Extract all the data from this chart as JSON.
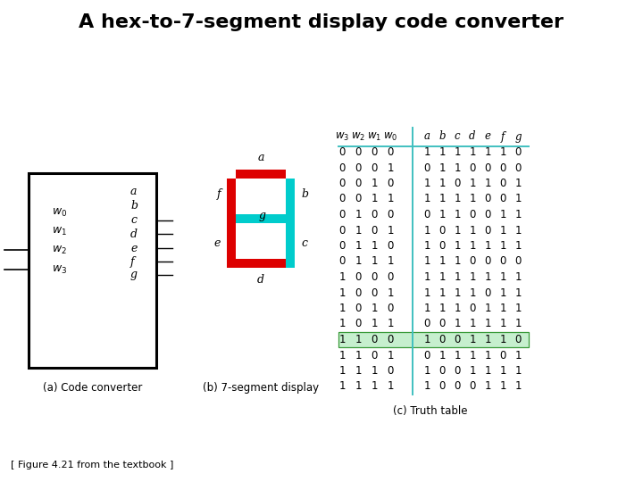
{
  "title": "A hex-to-7-segment display code converter",
  "title_fontsize": 16,
  "caption": "[ Figure 4.21 from the textbook ]",
  "sub_a": "(a) Code converter",
  "sub_b": "(b) 7-segment display",
  "sub_c": "(c) Truth table",
  "truth_table": {
    "headers_out": [
      "a",
      "b",
      "c",
      "d",
      "e",
      "f",
      "g"
    ],
    "rows": [
      [
        0,
        0,
        0,
        0,
        1,
        1,
        1,
        1,
        1,
        1,
        0
      ],
      [
        0,
        0,
        0,
        1,
        0,
        1,
        1,
        0,
        0,
        0,
        0
      ],
      [
        0,
        0,
        1,
        0,
        1,
        1,
        0,
        1,
        1,
        0,
        1
      ],
      [
        0,
        0,
        1,
        1,
        1,
        1,
        1,
        1,
        0,
        0,
        1
      ],
      [
        0,
        1,
        0,
        0,
        0,
        1,
        1,
        0,
        0,
        1,
        1
      ],
      [
        0,
        1,
        0,
        1,
        1,
        0,
        1,
        1,
        0,
        1,
        1
      ],
      [
        0,
        1,
        1,
        0,
        1,
        0,
        1,
        1,
        1,
        1,
        1
      ],
      [
        0,
        1,
        1,
        1,
        1,
        1,
        1,
        0,
        0,
        0,
        0
      ],
      [
        1,
        0,
        0,
        0,
        1,
        1,
        1,
        1,
        1,
        1,
        1
      ],
      [
        1,
        0,
        0,
        1,
        1,
        1,
        1,
        1,
        0,
        1,
        1
      ],
      [
        1,
        0,
        1,
        0,
        1,
        1,
        1,
        0,
        1,
        1,
        1
      ],
      [
        1,
        0,
        1,
        1,
        0,
        0,
        1,
        1,
        1,
        1,
        1
      ],
      [
        1,
        1,
        0,
        0,
        1,
        0,
        0,
        1,
        1,
        1,
        0
      ],
      [
        1,
        1,
        0,
        1,
        0,
        1,
        1,
        1,
        1,
        0,
        1
      ],
      [
        1,
        1,
        1,
        0,
        1,
        0,
        0,
        1,
        1,
        1,
        1
      ],
      [
        1,
        1,
        1,
        1,
        1,
        0,
        0,
        0,
        1,
        1,
        1
      ]
    ],
    "highlight_row": 12,
    "highlight_color": "#c6efce",
    "highlight_edge": "#3a9a3a",
    "divider_color": "#40c0c0",
    "header_line_color": "#40c0c0"
  },
  "seg_colors": {
    "red": "#dd0000",
    "cyan": "#00cccc"
  },
  "box_color": "#000000",
  "background": "#ffffff"
}
